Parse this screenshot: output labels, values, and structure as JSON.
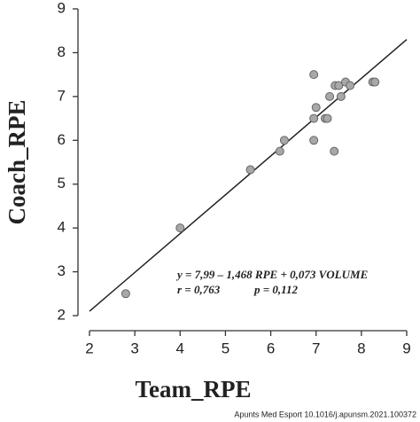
{
  "chart_data": {
    "type": "scatter",
    "x_label": "Team_RPE",
    "y_label": "Coach_RPE",
    "x": [
      2.8,
      4.0,
      5.55,
      6.2,
      6.3,
      6.95,
      6.95,
      7.0,
      6.95,
      7.2,
      7.25,
      7.3,
      7.4,
      7.42,
      7.5,
      7.55,
      7.65,
      7.75,
      8.25,
      8.3
    ],
    "y": [
      2.5,
      4.0,
      5.33,
      5.75,
      6.0,
      6.0,
      7.5,
      6.75,
      6.5,
      6.5,
      6.5,
      7.0,
      5.75,
      7.25,
      7.25,
      7.0,
      7.33,
      7.25,
      7.33,
      7.33
    ],
    "color": "#a8a8a8",
    "fit_line": {
      "x": [
        2,
        9
      ],
      "y": [
        2.1,
        8.3
      ]
    },
    "xlim": [
      2,
      9
    ],
    "ylim": [
      2,
      9
    ],
    "xticks": [
      2,
      3,
      4,
      5,
      6,
      7,
      8,
      9
    ],
    "yticks": [
      2,
      3,
      4,
      5,
      6,
      7,
      8,
      9
    ],
    "grid": false,
    "annotations": [
      "y = 7,99 – 1,468 RPE + 0,073 VOLUME",
      "r = 0,763",
      "p = 0,112"
    ],
    "source": "Apunts Med Esport 10.1016/j.apunsm.2021.100372"
  }
}
